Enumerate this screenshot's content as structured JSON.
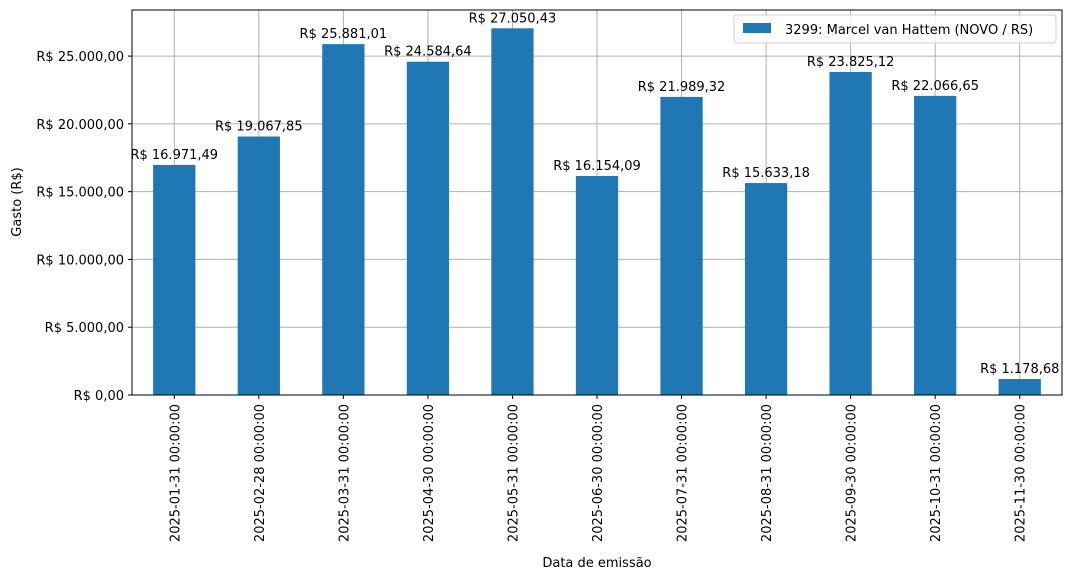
{
  "chart_data": {
    "type": "bar",
    "title": "",
    "xlabel": "Data de emissão",
    "ylabel": "Gasto (R$)",
    "ylim": [
      0,
      28400
    ],
    "grid": true,
    "legend_position": "upper right",
    "legend": [
      "3299: Marcel van Hattem (NOVO / RS)"
    ],
    "bar_color": "#1f77b4",
    "categories": [
      "2025-01-31 00:00:00",
      "2025-02-28 00:00:00",
      "2025-03-31 00:00:00",
      "2025-04-30 00:00:00",
      "2025-05-31 00:00:00",
      "2025-06-30 00:00:00",
      "2025-07-31 00:00:00",
      "2025-08-31 00:00:00",
      "2025-09-30 00:00:00",
      "2025-10-31 00:00:00",
      "2025-11-30 00:00:00"
    ],
    "series": [
      {
        "name": "3299: Marcel van Hattem (NOVO / RS)",
        "values": [
          16971.49,
          19067.85,
          25881.01,
          24584.64,
          27050.43,
          16154.09,
          21989.32,
          15633.18,
          23825.12,
          22066.65,
          1178.68
        ],
        "labels": [
          "R$ 16.971,49",
          "R$ 19.067,85",
          "R$ 25.881,01",
          "R$ 24.584,64",
          "R$ 27.050,43",
          "R$ 16.154,09",
          "R$ 21.989,32",
          "R$ 15.633,18",
          "R$ 23.825,12",
          "R$ 22.066,65",
          "R$ 1.178,68"
        ]
      }
    ],
    "yticks": [
      0,
      5000,
      10000,
      15000,
      20000,
      25000
    ],
    "ytick_labels": [
      "R$ 0,00",
      "R$ 5.000,00",
      "R$ 10.000,00",
      "R$ 15.000,00",
      "R$ 20.000,00",
      "R$ 25.000,00"
    ]
  }
}
